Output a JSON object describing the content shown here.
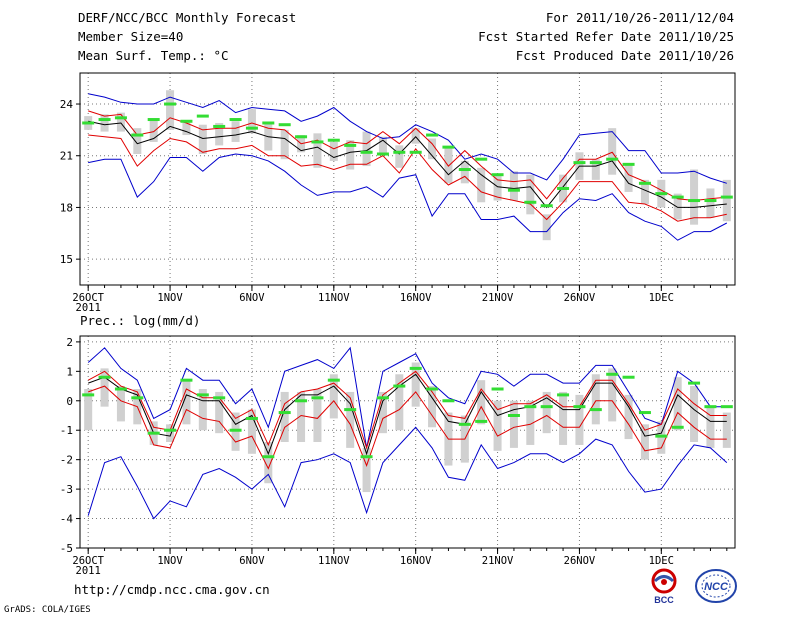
{
  "header": {
    "title": "DERF/NCC/BCC Monthly Forecast",
    "member_size": "Member Size=40",
    "variable": "Mean Surf. Temp.: °C",
    "period": "For 2011/10/26-2011/12/04",
    "refer_date": "Fcst Started Refer Date 2011/10/25",
    "produced_date": "Fcst Produced Date 2011/10/26"
  },
  "footer": {
    "url": "http://cmdp.ncc.cma.gov.cn",
    "credit": "GrADS: COLA/IGES",
    "logo_bcc_label": "BCC",
    "logo_ncc_label": "NCC"
  },
  "colors": {
    "mean": "#000000",
    "spread": "#e00000",
    "envelope": "#0000cc",
    "box": "#d0d0d0",
    "member_mark": "#33dd33"
  },
  "chart_data": [
    {
      "type": "line",
      "title": "Mean Surf. Temp.: °C",
      "x": [
        1,
        2,
        3,
        4,
        5,
        6,
        7,
        8,
        9,
        10,
        11,
        12,
        13,
        14,
        15,
        16,
        17,
        18,
        19,
        20,
        21,
        22,
        23,
        24,
        25,
        26,
        27,
        28,
        29,
        30,
        31,
        32,
        33,
        34,
        35,
        36,
        37,
        38,
        39,
        40
      ],
      "xtick_labels": [
        {
          "x": 1,
          "label": "26OCT"
        },
        {
          "x": 6,
          "label": "1NOV"
        },
        {
          "x": 11,
          "label": "6NOV"
        },
        {
          "x": 16,
          "label": "11NOV"
        },
        {
          "x": 21,
          "label": "16NOV"
        },
        {
          "x": 26,
          "label": "21NOV"
        },
        {
          "x": 31,
          "label": "26NOV"
        },
        {
          "x": 36,
          "label": "1DEC"
        }
      ],
      "year_label": "2011",
      "ylim": [
        13.5,
        25.8
      ],
      "yticks": [
        15,
        18,
        21,
        24
      ],
      "series": [
        {
          "name": "max",
          "values": [
            24.6,
            24.4,
            24.1,
            24.0,
            24.0,
            24.4,
            24.1,
            23.8,
            24.2,
            23.5,
            23.8,
            23.7,
            23.6,
            23.0,
            23.3,
            23.8,
            23.0,
            22.4,
            22.0,
            22.1,
            22.8,
            22.4,
            21.9,
            20.8,
            21.1,
            20.8,
            20.0,
            20.0,
            19.6,
            20.8,
            22.2,
            22.3,
            22.4,
            21.3,
            21.3,
            20.0,
            20.0,
            20.1,
            19.7,
            19.4
          ]
        },
        {
          "name": "p75",
          "values": [
            23.6,
            23.3,
            23.4,
            22.2,
            22.4,
            23.2,
            22.9,
            22.5,
            22.6,
            22.6,
            22.9,
            22.6,
            22.5,
            21.7,
            21.9,
            21.4,
            21.8,
            21.7,
            22.4,
            21.7,
            22.6,
            21.7,
            20.4,
            21.3,
            20.4,
            19.6,
            19.5,
            19.6,
            18.5,
            19.7,
            20.8,
            20.8,
            21.2,
            19.9,
            19.5,
            19.0,
            18.5,
            18.4,
            18.5,
            18.6
          ]
        },
        {
          "name": "mean",
          "values": [
            23.0,
            22.8,
            22.9,
            21.7,
            22.0,
            22.7,
            22.4,
            22.0,
            22.1,
            22.2,
            22.4,
            22.1,
            22.0,
            21.3,
            21.5,
            20.9,
            21.2,
            21.3,
            21.9,
            21.1,
            22.1,
            21.0,
            19.9,
            20.7,
            19.9,
            19.2,
            19.1,
            19.2,
            18.0,
            19.2,
            20.4,
            20.4,
            20.7,
            19.4,
            19.0,
            18.6,
            18.0,
            18.0,
            18.1,
            18.2
          ]
        },
        {
          "name": "p25",
          "values": [
            22.2,
            22.1,
            22.0,
            20.4,
            21.3,
            22.0,
            21.8,
            21.2,
            21.4,
            21.4,
            21.6,
            21.0,
            21.0,
            20.4,
            20.5,
            20.2,
            20.5,
            20.5,
            21.0,
            20.0,
            21.4,
            20.2,
            19.3,
            19.8,
            18.9,
            18.6,
            18.4,
            18.2,
            17.3,
            18.3,
            19.5,
            19.5,
            19.5,
            18.3,
            18.2,
            17.8,
            17.2,
            17.4,
            17.4,
            17.6
          ]
        },
        {
          "name": "min",
          "values": [
            20.6,
            20.8,
            20.8,
            18.6,
            19.5,
            20.9,
            20.9,
            20.1,
            20.9,
            21.1,
            21.0,
            20.7,
            20.1,
            19.3,
            18.7,
            18.9,
            18.9,
            19.2,
            18.6,
            19.7,
            19.9,
            17.5,
            18.8,
            18.8,
            17.3,
            17.3,
            17.5,
            16.6,
            16.6,
            17.7,
            18.5,
            18.4,
            18.8,
            17.7,
            17.2,
            16.9,
            16.1,
            16.6,
            16.6,
            17.1
          ]
        },
        {
          "name": "members",
          "values": [
            22.9,
            23.1,
            23.2,
            22.2,
            23.1,
            24.0,
            23.0,
            23.3,
            22.7,
            23.1,
            22.6,
            22.9,
            22.8,
            22.1,
            21.8,
            21.9,
            21.6,
            21.2,
            21.1,
            21.2,
            21.2,
            22.2,
            21.5,
            20.2,
            20.8,
            19.9,
            19.0,
            18.3,
            18.1,
            19.1,
            20.6,
            20.6,
            20.8,
            20.5,
            19.4,
            18.8,
            18.6,
            18.4,
            18.4,
            18.6
          ]
        }
      ],
      "box_ranges": [
        [
          22.5,
          23.3
        ],
        [
          22.4,
          23.4
        ],
        [
          22.4,
          23.5
        ],
        [
          21.1,
          22.6
        ],
        [
          21.8,
          23.1
        ],
        [
          22.5,
          24.8
        ],
        [
          22.2,
          23.0
        ],
        [
          21.1,
          22.8
        ],
        [
          21.6,
          22.9
        ],
        [
          21.8,
          23.0
        ],
        [
          22.3,
          23.7
        ],
        [
          21.3,
          22.9
        ],
        [
          20.8,
          22.5
        ],
        [
          21.2,
          22.2
        ],
        [
          20.3,
          22.3
        ],
        [
          20.7,
          21.8
        ],
        [
          20.2,
          21.9
        ],
        [
          20.4,
          22.4
        ],
        [
          21.1,
          22.1
        ],
        [
          20.3,
          21.6
        ],
        [
          21.7,
          22.6
        ],
        [
          20.8,
          22.0
        ],
        [
          19.4,
          21.5
        ],
        [
          19.4,
          20.7
        ],
        [
          18.3,
          20.3
        ],
        [
          18.4,
          19.9
        ],
        [
          18.4,
          20.1
        ],
        [
          17.6,
          19.9
        ],
        [
          16.1,
          17.6
        ],
        [
          18.3,
          19.9
        ],
        [
          19.6,
          21.2
        ],
        [
          19.6,
          20.8
        ],
        [
          19.9,
          22.6
        ],
        [
          18.9,
          20.5
        ],
        [
          18.2,
          19.6
        ],
        [
          18.0,
          19.6
        ],
        [
          17.3,
          18.8
        ],
        [
          17.0,
          20.2
        ],
        [
          17.4,
          19.1
        ],
        [
          17.2,
          19.6
        ]
      ]
    },
    {
      "type": "line",
      "title": "Prec.: log(mm/d)",
      "x": [
        1,
        2,
        3,
        4,
        5,
        6,
        7,
        8,
        9,
        10,
        11,
        12,
        13,
        14,
        15,
        16,
        17,
        18,
        19,
        20,
        21,
        22,
        23,
        24,
        25,
        26,
        27,
        28,
        29,
        30,
        31,
        32,
        33,
        34,
        35,
        36,
        37,
        38,
        39,
        40
      ],
      "xtick_labels": [
        {
          "x": 1,
          "label": "26OCT"
        },
        {
          "x": 6,
          "label": "1NOV"
        },
        {
          "x": 11,
          "label": "6NOV"
        },
        {
          "x": 16,
          "label": "11NOV"
        },
        {
          "x": 21,
          "label": "16NOV"
        },
        {
          "x": 26,
          "label": "21NOV"
        },
        {
          "x": 31,
          "label": "26NOV"
        },
        {
          "x": 36,
          "label": "1DEC"
        }
      ],
      "year_label": "2011",
      "ylim": [
        -5,
        2.2
      ],
      "yticks": [
        -5,
        -4,
        -3,
        -2,
        -1,
        0,
        1,
        2
      ],
      "series": [
        {
          "name": "max",
          "values": [
            1.3,
            1.8,
            1.1,
            0.7,
            -0.6,
            -0.3,
            1.1,
            0.7,
            0.7,
            -0.1,
            0.4,
            -0.9,
            1.0,
            1.2,
            1.4,
            1.1,
            1.8,
            -1.6,
            1.0,
            1.3,
            1.6,
            0.6,
            0.1,
            -0.1,
            1.0,
            0.9,
            0.5,
            0.9,
            0.9,
            0.6,
            0.6,
            1.2,
            1.2,
            0.3,
            -0.6,
            -0.8,
            1.0,
            0.6,
            -0.2,
            -0.2
          ]
        },
        {
          "name": "p75",
          "values": [
            0.7,
            1.0,
            0.5,
            0.3,
            -0.9,
            -1.0,
            0.4,
            0.1,
            0.1,
            -0.6,
            -0.3,
            -1.5,
            -0.1,
            0.3,
            0.4,
            0.6,
            0.1,
            -1.6,
            0.2,
            0.6,
            1.0,
            0.3,
            -0.5,
            -0.6,
            0.4,
            -0.3,
            -0.1,
            -0.1,
            0.2,
            -0.2,
            -0.2,
            0.7,
            0.7,
            -0.1,
            -1.0,
            -0.8,
            0.4,
            -0.1,
            -0.5,
            -0.5
          ]
        },
        {
          "name": "mean",
          "values": [
            0.6,
            0.8,
            0.4,
            0.2,
            -1.1,
            -1.2,
            0.2,
            0.0,
            0.0,
            -0.8,
            -0.5,
            -1.8,
            -0.3,
            0.2,
            0.2,
            0.5,
            -0.1,
            -1.8,
            0.0,
            0.5,
            0.9,
            0.1,
            -0.7,
            -0.8,
            0.3,
            -0.5,
            -0.3,
            -0.2,
            0.1,
            -0.3,
            -0.3,
            0.6,
            0.6,
            -0.2,
            -1.2,
            -1.1,
            0.2,
            -0.3,
            -0.7,
            -0.7
          ]
        },
        {
          "name": "p25",
          "values": [
            0.3,
            0.5,
            0.0,
            -0.2,
            -1.5,
            -1.6,
            -0.3,
            -0.6,
            -0.7,
            -1.4,
            -1.2,
            -2.3,
            -0.9,
            -0.5,
            -0.6,
            0.0,
            -0.8,
            -2.2,
            -0.6,
            -0.3,
            0.3,
            -0.5,
            -1.3,
            -1.3,
            -0.2,
            -1.2,
            -0.9,
            -0.8,
            -0.5,
            -0.9,
            -0.9,
            0.0,
            0.0,
            -0.8,
            -1.7,
            -1.6,
            -0.4,
            -0.9,
            -1.3,
            -1.3
          ]
        },
        {
          "name": "min",
          "values": [
            -3.9,
            -2.1,
            -1.9,
            -2.9,
            -4.0,
            -3.4,
            -3.6,
            -2.5,
            -2.3,
            -2.6,
            -3.0,
            -2.5,
            -3.6,
            -2.1,
            -2.0,
            -1.8,
            -2.1,
            -3.8,
            -2.1,
            -1.5,
            -0.9,
            -1.6,
            -2.6,
            -2.7,
            -1.5,
            -2.3,
            -2.1,
            -1.8,
            -1.8,
            -2.1,
            -1.8,
            -1.3,
            -1.5,
            -2.4,
            -3.1,
            -3.0,
            -2.2,
            -1.5,
            -1.6,
            -2.1
          ]
        },
        {
          "name": "members",
          "values": [
            0.2,
            0.8,
            0.4,
            0.1,
            -1.1,
            -1.0,
            0.7,
            0.2,
            0.1,
            -1.0,
            -0.6,
            -1.9,
            -0.4,
            0.0,
            0.1,
            0.7,
            -0.3,
            -1.9,
            0.1,
            0.5,
            1.1,
            0.4,
            0.0,
            -0.8,
            -0.7,
            0.4,
            -0.5,
            -0.2,
            -0.2,
            0.2,
            -0.2,
            -0.3,
            0.9,
            0.8,
            -0.4,
            -1.2,
            -0.9,
            0.6,
            -0.2,
            -0.2
          ]
        }
      ],
      "box_ranges": [
        [
          -1.0,
          0.4
        ],
        [
          -0.2,
          1.1
        ],
        [
          -0.7,
          0.5
        ],
        [
          -0.8,
          0.4
        ],
        [
          -1.5,
          -0.7
        ],
        [
          -1.4,
          -0.8
        ],
        [
          -0.8,
          0.7
        ],
        [
          -1.0,
          0.4
        ],
        [
          -1.1,
          0.3
        ],
        [
          -1.7,
          -0.4
        ],
        [
          -1.8,
          -0.3
        ],
        [
          -2.8,
          -1.4
        ],
        [
          -1.4,
          0.3
        ],
        [
          -1.4,
          0.3
        ],
        [
          -1.4,
          0.4
        ],
        [
          -0.6,
          0.9
        ],
        [
          -1.6,
          0.3
        ],
        [
          -3.1,
          -1.6
        ],
        [
          -1.1,
          0.3
        ],
        [
          -1.0,
          0.9
        ],
        [
          -0.2,
          1.3
        ],
        [
          -0.9,
          0.5
        ],
        [
          -2.2,
          -0.4
        ],
        [
          -2.1,
          -0.5
        ],
        [
          -0.8,
          0.7
        ],
        [
          -1.7,
          0.0
        ],
        [
          -1.6,
          0.0
        ],
        [
          -1.5,
          0.0
        ],
        [
          -1.1,
          0.3
        ],
        [
          -1.5,
          0.3
        ],
        [
          -1.5,
          0.2
        ],
        [
          -0.8,
          0.9
        ],
        [
          -0.7,
          1.1
        ],
        [
          -1.3,
          0.2
        ],
        [
          -2.0,
          -0.8
        ],
        [
          -1.8,
          -0.7
        ],
        [
          -1.0,
          0.8
        ],
        [
          -1.4,
          0.5
        ],
        [
          -1.6,
          -0.2
        ],
        [
          -1.6,
          -0.4
        ]
      ]
    }
  ]
}
